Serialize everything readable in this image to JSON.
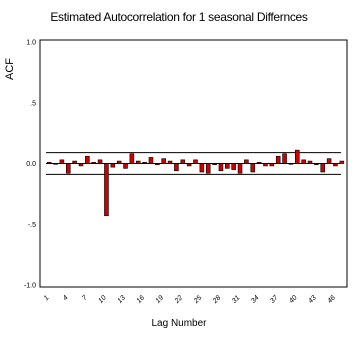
{
  "chart_data": {
    "type": "bar",
    "title": "Estimated Autocorrelation for 1 seasonal Differnces",
    "xlabel": "Lag Number",
    "ylabel": "ACF",
    "ylim": [
      -1.0,
      1.0
    ],
    "yticks": [
      "1.0",
      ".5",
      "0.0",
      "-.5",
      "-1.0"
    ],
    "ytick_values": [
      1.0,
      0.5,
      0.0,
      -0.5,
      -1.0
    ],
    "xtick_labels": [
      "1",
      "4",
      "7",
      "10",
      "13",
      "16",
      "19",
      "22",
      "25",
      "28",
      "31",
      "34",
      "37",
      "40",
      "43",
      "46"
    ],
    "confidence_limits": [
      0.09,
      -0.09
    ],
    "lags": [
      1,
      2,
      3,
      4,
      5,
      6,
      7,
      8,
      9,
      10,
      11,
      12,
      13,
      14,
      15,
      16,
      17,
      18,
      19,
      20,
      21,
      22,
      23,
      24,
      25,
      26,
      27,
      28,
      29,
      30,
      31,
      32,
      33,
      34,
      35,
      36,
      37,
      38,
      39,
      40,
      41,
      42,
      43,
      44,
      45,
      46,
      47
    ],
    "values": [
      0.01,
      0.0,
      0.03,
      -0.08,
      0.02,
      -0.02,
      0.06,
      0.01,
      0.03,
      -0.43,
      -0.03,
      0.02,
      -0.04,
      0.08,
      0.02,
      0.01,
      0.05,
      -0.01,
      0.04,
      0.02,
      -0.06,
      0.03,
      -0.02,
      0.03,
      -0.07,
      -0.08,
      -0.01,
      -0.06,
      -0.04,
      -0.05,
      -0.08,
      0.03,
      -0.07,
      0.01,
      -0.02,
      -0.02,
      0.06,
      0.08,
      0.0,
      0.11,
      0.03,
      0.02,
      -0.01,
      -0.07,
      0.04,
      -0.02,
      0.02
    ],
    "bar_color": "#cc0000",
    "grid": false
  }
}
